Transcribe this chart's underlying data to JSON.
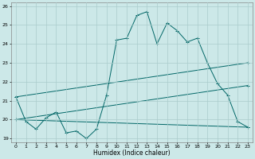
{
  "xlabel": "Humidex (Indice chaleur)",
  "background_color": "#cce8e8",
  "grid_color": "#aacccc",
  "line_color": "#006666",
  "xlim": [
    -0.5,
    23.5
  ],
  "ylim": [
    18.8,
    26.2
  ],
  "yticks": [
    19,
    20,
    21,
    22,
    23,
    24,
    25,
    26
  ],
  "xticks": [
    0,
    1,
    2,
    3,
    4,
    5,
    6,
    7,
    8,
    9,
    10,
    11,
    12,
    13,
    14,
    15,
    16,
    17,
    18,
    19,
    20,
    21,
    22,
    23
  ],
  "series": [
    {
      "x": [
        0,
        1,
        2,
        3,
        4,
        5,
        6,
        7,
        8,
        9,
        10,
        11,
        12,
        13,
        14,
        15,
        16,
        17,
        18,
        19,
        20,
        21,
        22,
        23
      ],
      "y": [
        21.2,
        19.9,
        19.5,
        20.1,
        20.4,
        19.3,
        19.4,
        19.0,
        19.5,
        21.3,
        24.2,
        24.3,
        25.5,
        25.7,
        24.0,
        25.1,
        24.7,
        24.1,
        24.3,
        23.0,
        21.9,
        21.3,
        19.9,
        19.6
      ]
    },
    {
      "x": [
        0,
        23
      ],
      "y": [
        21.2,
        23.0
      ]
    },
    {
      "x": [
        0,
        23
      ],
      "y": [
        20.0,
        21.8
      ]
    },
    {
      "x": [
        0,
        23
      ],
      "y": [
        20.0,
        19.6
      ]
    }
  ]
}
